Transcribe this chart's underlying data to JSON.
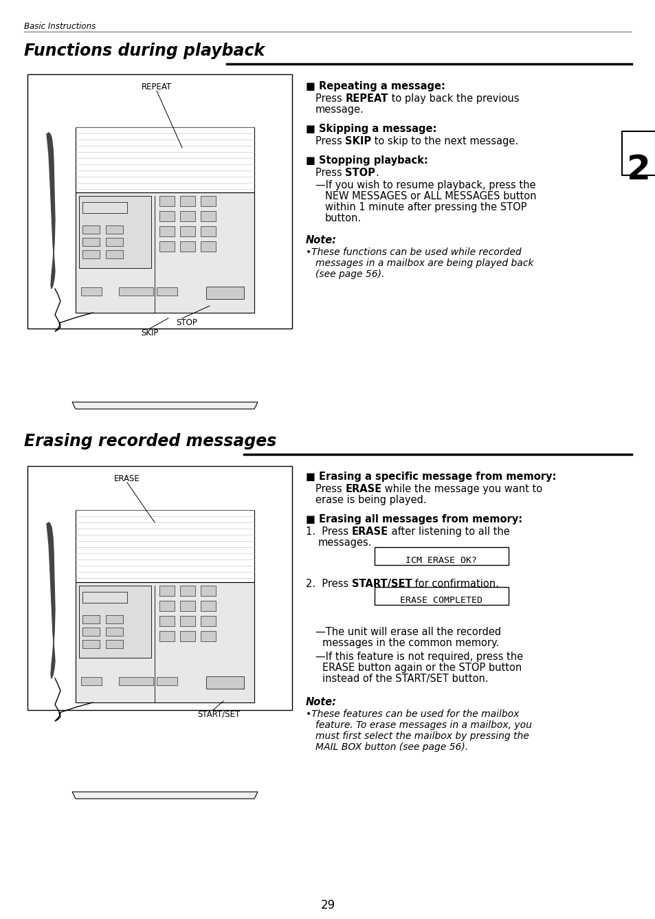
{
  "bg_color": "#ffffff",
  "header_italic": "Basic Instructions",
  "section1_title": "Functions during playback",
  "section2_title": "Erasing recorded messages",
  "page_number": "29",
  "s1_repeat_title": "■ Repeating a message:",
  "s1_skip_title": "■ Skipping a message:",
  "s1_stop_title": "■ Stopping playback:",
  "s1_stop_sub1": "—If you wish to resume playback, press the",
  "s1_stop_sub2": "NEW MESSAGES or ALL MESSAGES button",
  "s1_stop_sub3": "within 1 minute after pressing the STOP",
  "s1_stop_sub4": "button.",
  "s1_note_title": "Note:",
  "s1_note_body1": "•These functions can be used while recorded",
  "s1_note_body2": "messages in a mailbox are being played back",
  "s1_note_body3": "(see page 56).",
  "s2_erase_spec_title": "■ Erasing a specific message from memory:",
  "s2_erase_all_title": "■ Erasing all messages from memory:",
  "s2_lcd1": "ICM ERASE OK?",
  "s2_lcd2": "ERASE COMPLETED",
  "s2_dash1": "—The unit will erase all the recorded",
  "s2_dash2": "messages in the common memory.",
  "s2_dash3": "—If this feature is not required, press the",
  "s2_dash4": "ERASE button again or the STOP button",
  "s2_dash5": "instead of the START/SET button.",
  "s2_note_title": "Note:",
  "s2_note_body1": "•These features can be used for the mailbox",
  "s2_note_body2": "feature. To erase messages in a mailbox, you",
  "s2_note_body3": "must first select the mailbox by pressing the",
  "s2_note_body4": "MAIL BOX button (see page 56)."
}
